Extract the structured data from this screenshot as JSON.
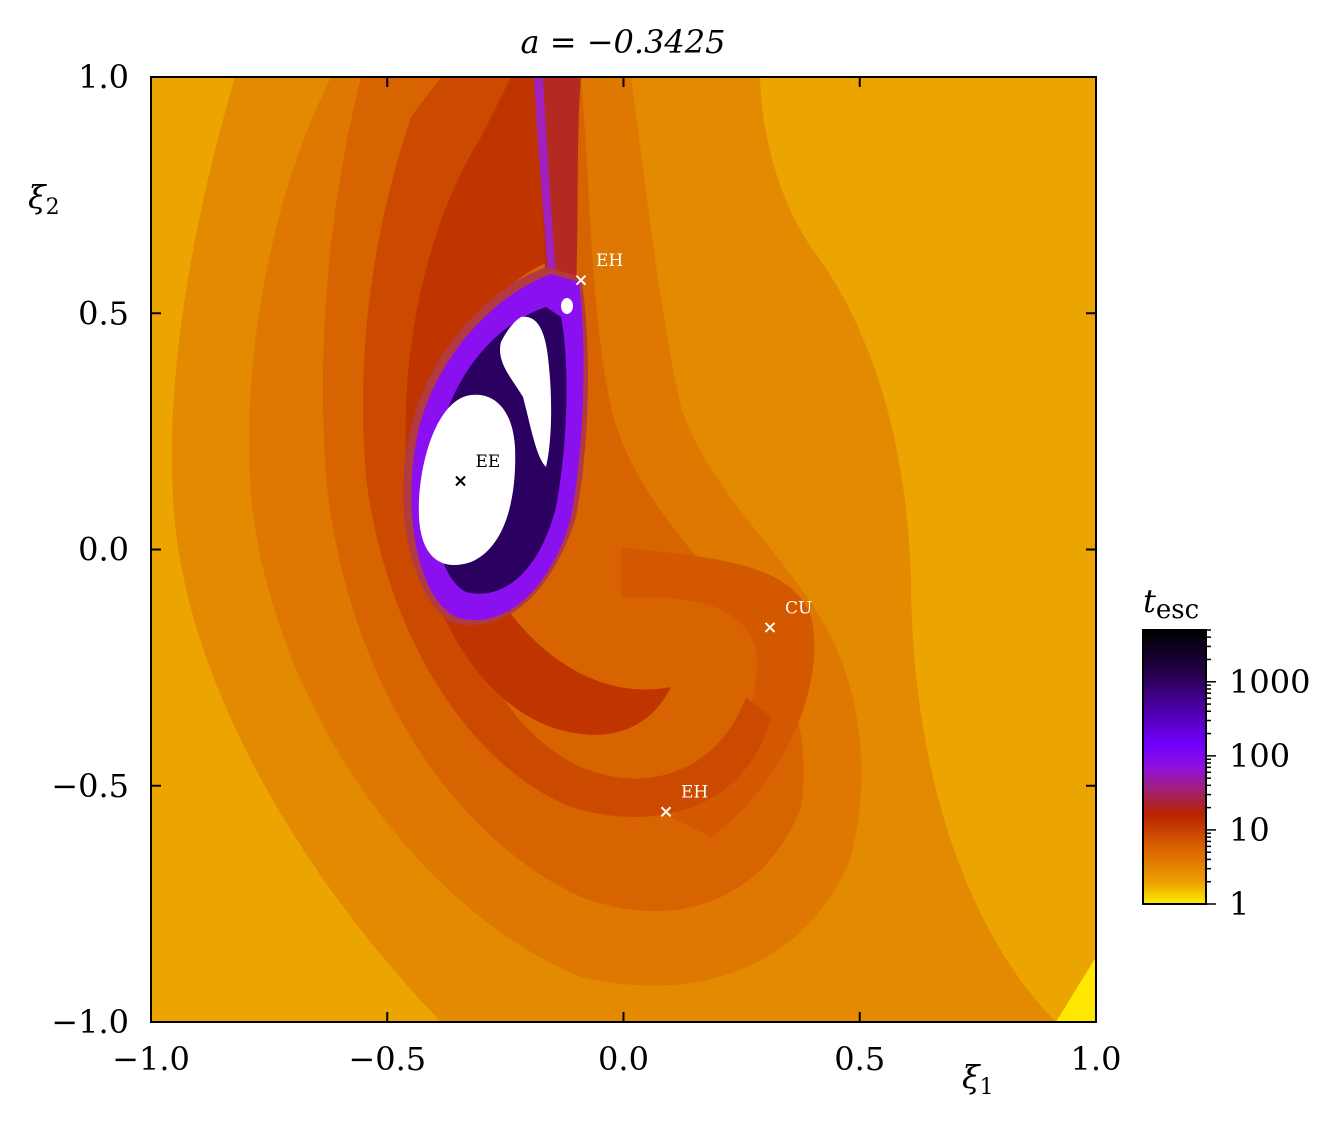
{
  "chart_data": {
    "type": "heatmap",
    "title": "a = −0.3425",
    "xlabel": "ξ1",
    "ylabel": "ξ2",
    "xlim": [
      -1.0,
      1.0
    ],
    "ylim": [
      -1.0,
      1.0
    ],
    "xticks": [
      -1.0,
      -0.5,
      0.0,
      0.5,
      1.0
    ],
    "yticks": [
      -1.0,
      -0.5,
      0.0,
      0.5,
      1.0
    ],
    "xtick_labels": [
      "−1.0",
      "−0.5",
      "0.0",
      "0.5",
      "1.0"
    ],
    "ytick_labels": [
      "−1.0",
      "−0.5",
      "0.0",
      "0.5",
      "1.0"
    ],
    "grid": false,
    "colorbar": {
      "label": "t_esc",
      "label_main": "t",
      "label_sub": "esc",
      "scale": "log",
      "range": [
        1,
        5000
      ],
      "ticks": [
        1,
        10,
        100,
        1000
      ],
      "tick_labels": [
        "1",
        "10",
        "100",
        "1000"
      ],
      "colors": [
        "#ffee00",
        "#eaa000",
        "#dc6400",
        "#b82200",
        "#a0207a",
        "#9010e0",
        "#7000ff",
        "#4a00a0",
        "#200040",
        "#000000"
      ]
    },
    "markers": [
      {
        "label": "EH",
        "x": -0.09,
        "y": 0.57,
        "color": "#ffffff"
      },
      {
        "label": "EE",
        "x": -0.345,
        "y": 0.145,
        "color": "#000000"
      },
      {
        "label": "CU",
        "x": 0.31,
        "y": -0.165,
        "color": "#ffffff"
      },
      {
        "label": "EH",
        "x": 0.09,
        "y": -0.555,
        "color": "#ffffff"
      }
    ],
    "regions": {
      "non_escaping_color": "#ffffff",
      "background_color": "#eca500"
    }
  }
}
